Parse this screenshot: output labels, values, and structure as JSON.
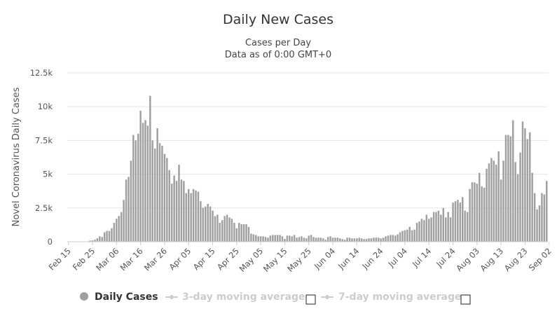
{
  "chart_data": {
    "type": "bar",
    "title": "Daily New Cases",
    "subtitle": [
      "Cases per Day",
      "Data as of 0:00 GMT+0"
    ],
    "ylabel": "Novel Coronavirus Daily Cases",
    "xlabel": "",
    "ylim": [
      0,
      12500
    ],
    "yticks": [
      {
        "v": 0,
        "label": "0"
      },
      {
        "v": 2500,
        "label": "2.5k"
      },
      {
        "v": 5000,
        "label": "5k"
      },
      {
        "v": 7500,
        "label": "7.5k"
      },
      {
        "v": 10000,
        "label": "10k"
      },
      {
        "v": 12500,
        "label": "12.5k"
      }
    ],
    "xticks": [
      "Feb 15",
      "Feb 25",
      "Mar 06",
      "Mar 16",
      "Mar 26",
      "Apr 05",
      "Apr 15",
      "Apr 25",
      "May 05",
      "May 15",
      "May 25",
      "Jun 04",
      "Jun 14",
      "Jun 24",
      "Jul 04",
      "Jul 14",
      "Jul 24",
      "Aug 03",
      "Aug 13",
      "Aug 23",
      "Sep 02"
    ],
    "grid": true,
    "start": "Feb 15",
    "series": [
      {
        "name": "Daily Cases",
        "color": "#a0a0a0",
        "values": [
          0,
          0,
          0,
          0,
          0,
          0,
          0,
          0,
          0,
          80,
          100,
          150,
          250,
          400,
          350,
          700,
          800,
          800,
          1000,
          1400,
          1700,
          1900,
          2200,
          3100,
          4600,
          4800,
          6000,
          7900,
          7500,
          8000,
          9700,
          8800,
          9000,
          8600,
          10800,
          7500,
          6900,
          8400,
          7300,
          7100,
          6500,
          6200,
          5300,
          4300,
          4900,
          4500,
          5700,
          4600,
          4500,
          3600,
          3900,
          3600,
          3900,
          3800,
          3700,
          3000,
          2500,
          2600,
          2800,
          2600,
          2300,
          1900,
          2000,
          1400,
          1600,
          1900,
          2000,
          1800,
          1700,
          1400,
          1000,
          1400,
          1300,
          1300,
          1300,
          1100,
          600,
          550,
          500,
          400,
          400,
          400,
          350,
          300,
          450,
          500,
          500,
          500,
          500,
          400,
          200,
          450,
          450,
          400,
          500,
          300,
          350,
          400,
          300,
          250,
          450,
          500,
          350,
          300,
          300,
          300,
          250,
          150,
          350,
          400,
          300,
          300,
          300,
          250,
          200,
          150,
          300,
          300,
          250,
          250,
          250,
          300,
          250,
          200,
          200,
          250,
          250,
          300,
          300,
          300,
          250,
          300,
          400,
          450,
          500,
          500,
          450,
          550,
          700,
          800,
          850,
          900,
          1100,
          850,
          900,
          1400,
          1500,
          1700,
          1600,
          2000,
          1700,
          1800,
          2200,
          2200,
          2300,
          2000,
          2500,
          1800,
          2200,
          1800,
          2900,
          3000,
          3100,
          2900,
          3300,
          2300,
          2200,
          3900,
          4400,
          4400,
          4300,
          5100,
          4100,
          4000,
          5400,
          5800,
          6200,
          6000,
          5700,
          6700,
          4600,
          6000,
          7900,
          7900,
          7800,
          9000,
          5900,
          5000,
          6600,
          8900,
          8400,
          7600,
          8100,
          5100,
          3600,
          2400,
          2700,
          3600,
          3500,
          4500
        ]
      },
      {
        "name": "3-day moving average",
        "visible": false
      },
      {
        "name": "7-day moving average",
        "visible": false
      }
    ]
  },
  "legend": {
    "items": [
      {
        "label": "Daily Cases",
        "active": true
      },
      {
        "label": "3-day moving average",
        "active": false
      },
      {
        "label": "7-day moving average",
        "active": false
      }
    ]
  }
}
